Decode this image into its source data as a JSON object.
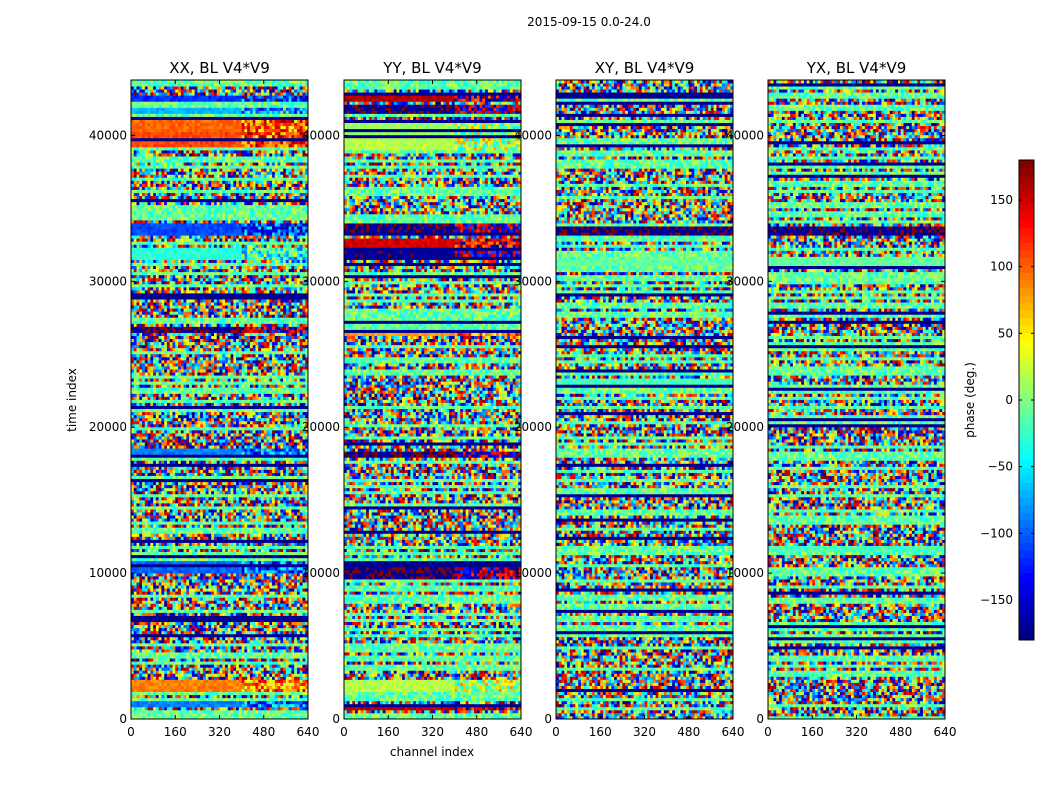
{
  "chart_data": {
    "type": "heatmap",
    "title": "2015-09-15 0.0-24.0",
    "xlabel": "channel index",
    "ylabel": "time index",
    "xlim": [
      0,
      640
    ],
    "ylim": [
      0,
      43800
    ],
    "xticks": [
      0,
      160,
      320,
      480,
      640
    ],
    "yticks": [
      0,
      10000,
      20000,
      30000,
      40000
    ],
    "panels": [
      {
        "title": "XX, BL V4*V9",
        "profile": "xx"
      },
      {
        "title": "YY, BL V4*V9",
        "profile": "yy"
      },
      {
        "title": "XY, BL V4*V9",
        "profile": "xy"
      },
      {
        "title": "YX, BL V4*V9",
        "profile": "yx"
      }
    ],
    "colorbar": {
      "label": "phase (deg.)",
      "colormap": "jet",
      "range": [
        -180,
        180
      ],
      "ticks": [
        150,
        100,
        50,
        0,
        -50,
        -100,
        -150
      ],
      "tick_labels": [
        "150",
        "100",
        "50",
        "0",
        "−50",
        "−100",
        "−150"
      ]
    },
    "bands": {
      "xx": [
        {
          "t0": 42300,
          "t1": 42800,
          "phase": -120
        },
        {
          "t0": 41500,
          "t1": 42000,
          "phase": -70
        },
        {
          "t0": 40200,
          "t1": 41000,
          "phase": 100
        },
        {
          "t0": 39300,
          "t1": 40200,
          "phase": 110
        },
        {
          "t0": 33200,
          "t1": 33900,
          "phase": -110
        },
        {
          "t0": 31500,
          "t1": 32300,
          "phase": -30
        },
        {
          "t0": 26500,
          "t1": 26900,
          "phase": -175
        },
        {
          "t0": 18100,
          "t1": 18500,
          "phase": -90
        },
        {
          "t0": 10000,
          "t1": 10800,
          "phase": -100
        },
        {
          "t0": 1800,
          "t1": 2800,
          "phase": 90
        },
        {
          "t0": 800,
          "t1": 1300,
          "phase": -90
        }
      ],
      "yy": [
        {
          "t0": 42400,
          "t1": 42900,
          "phase": 160
        },
        {
          "t0": 41500,
          "t1": 42200,
          "phase": -175
        },
        {
          "t0": 40000,
          "t1": 41000,
          "phase": 10
        },
        {
          "t0": 39000,
          "t1": 39800,
          "phase": 20
        },
        {
          "t0": 33200,
          "t1": 34000,
          "phase": -175
        },
        {
          "t0": 32300,
          "t1": 33000,
          "phase": 150
        },
        {
          "t0": 31500,
          "t1": 32100,
          "phase": -170
        },
        {
          "t0": 26300,
          "t1": 26800,
          "phase": 80
        },
        {
          "t0": 18000,
          "t1": 18400,
          "phase": -175
        },
        {
          "t0": 9500,
          "t1": 10700,
          "phase": -175
        },
        {
          "t0": 1800,
          "t1": 2700,
          "phase": 20
        },
        {
          "t0": 700,
          "t1": 1100,
          "phase": 160
        }
      ],
      "xy": [
        {
          "t0": 33200,
          "t1": 33700,
          "phase": -175
        },
        {
          "t0": 31000,
          "t1": 31500,
          "phase": -10
        },
        {
          "t0": 22800,
          "t1": 23400,
          "phase": -20
        }
      ],
      "yx": [
        {
          "t0": 33200,
          "t1": 33700,
          "phase": -175
        },
        {
          "t0": 31000,
          "t1": 31600,
          "phase": -10
        },
        {
          "t0": 11400,
          "t1": 11800,
          "phase": -20
        }
      ]
    }
  }
}
